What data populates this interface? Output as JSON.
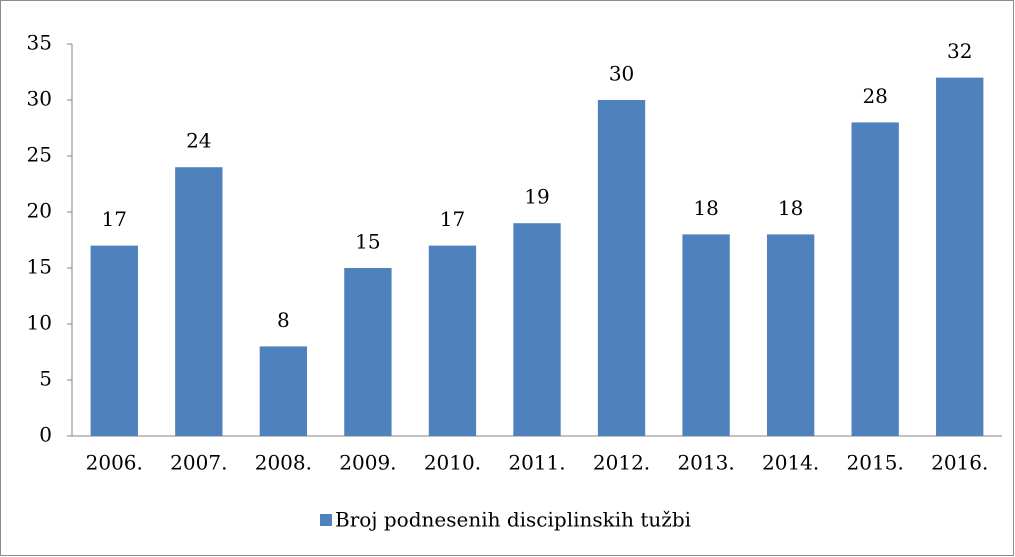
{
  "chart_data": {
    "type": "bar",
    "categories": [
      "2006.",
      "2007.",
      "2008.",
      "2009.",
      "2010.",
      "2011.",
      "2012.",
      "2013.",
      "2014.",
      "2015.",
      "2016."
    ],
    "series": [
      {
        "name": "Broj podnesenih disciplinskih tužbi",
        "color": "#4f81bd",
        "values": [
          17,
          24,
          8,
          15,
          17,
          19,
          30,
          18,
          18,
          28,
          32
        ]
      }
    ],
    "ylim": [
      0,
      35
    ],
    "yticks": [
      0,
      5,
      10,
      15,
      20,
      25,
      30,
      35
    ],
    "grid": false,
    "legend": "bottom",
    "data_labels": true
  }
}
